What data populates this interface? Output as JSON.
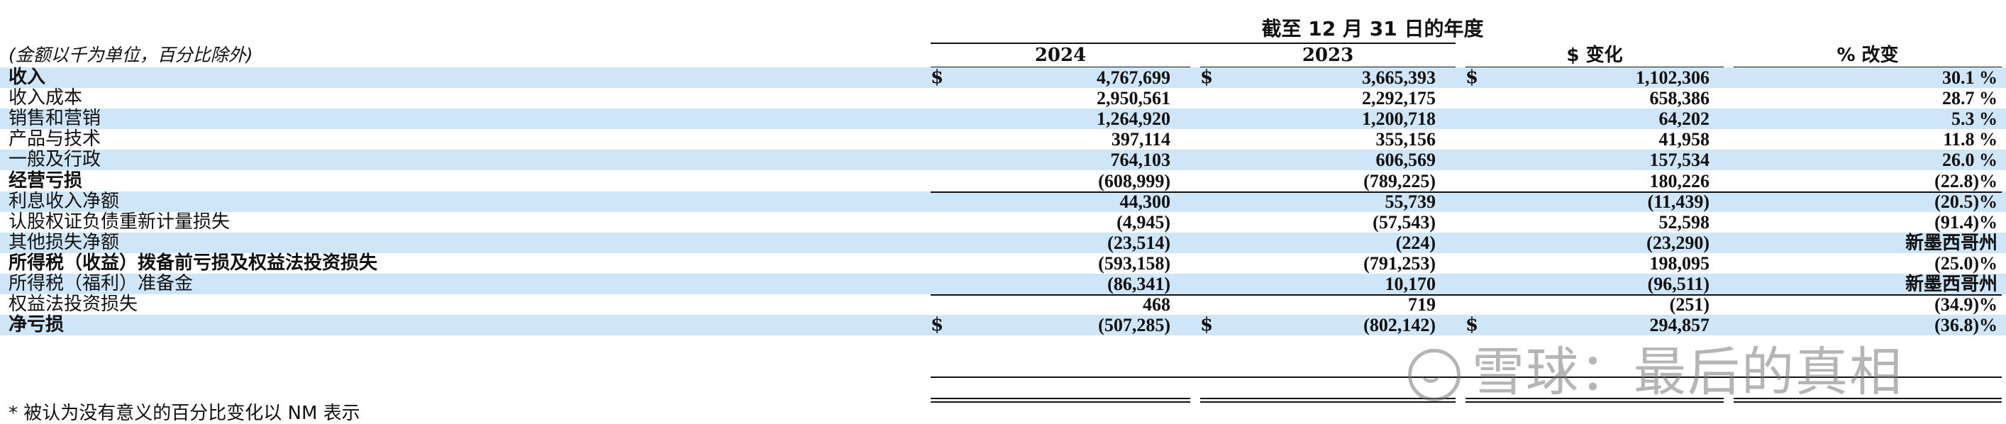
{
  "header": {
    "period_title": "截至 12 月 31 日的年度",
    "note": "(金额以千为单位，百分比除外)",
    "columns": [
      "2024",
      "2023",
      "$ 变化",
      "% 改变"
    ]
  },
  "rows": [
    {
      "label": "收入",
      "bold": true,
      "shaded": true,
      "dollar": true,
      "c1": "4,767,699",
      "c2": "3,665,393",
      "c3": "1,102,306",
      "c4": "30.1 %"
    },
    {
      "label": "收入成本",
      "bold": false,
      "shaded": false,
      "dollar": false,
      "c1": "2,950,561",
      "c2": "2,292,175",
      "c3": "658,386",
      "c4": "28.7 %"
    },
    {
      "label": "销售和营销",
      "bold": false,
      "shaded": true,
      "dollar": false,
      "c1": "1,264,920",
      "c2": "1,200,718",
      "c3": "64,202",
      "c4": "5.3 %"
    },
    {
      "label": "产品与技术",
      "bold": false,
      "shaded": false,
      "dollar": false,
      "c1": "397,114",
      "c2": "355,156",
      "c3": "41,958",
      "c4": "11.8 %"
    },
    {
      "label": "一般及行政",
      "bold": false,
      "shaded": true,
      "dollar": false,
      "c1": "764,103",
      "c2": "606,569",
      "c3": "157,534",
      "c4": "26.0 %"
    },
    {
      "label": "经营亏损",
      "bold": true,
      "shaded": false,
      "dollar": false,
      "c1": "(608,999)",
      "c2": "(789,225)",
      "c3": "180,226",
      "c4": "(22.8)%"
    },
    {
      "label": "利息收入净额",
      "bold": false,
      "shaded": true,
      "dollar": false,
      "c1": "44,300",
      "c2": "55,739",
      "c3": "(11,439)",
      "c4": "(20.5)%"
    },
    {
      "label": "认股权证负债重新计量损失",
      "bold": false,
      "shaded": false,
      "dollar": false,
      "c1": "(4,945)",
      "c2": "(57,543)",
      "c3": "52,598",
      "c4": "(91.4)%"
    },
    {
      "label": "其他损失净额",
      "bold": false,
      "shaded": true,
      "dollar": false,
      "c1": "(23,514)",
      "c2": "(224)",
      "c3": "(23,290)",
      "c4": "新墨西哥州"
    },
    {
      "label": "所得税（收益）拨备前亏损及权益法投资损失",
      "bold": true,
      "shaded": false,
      "dollar": false,
      "c1": "(593,158)",
      "c2": "(791,253)",
      "c3": "198,095",
      "c4": "(25.0)%"
    },
    {
      "label": "所得税（福利）准备金",
      "bold": false,
      "shaded": true,
      "dollar": false,
      "c1": "(86,341)",
      "c2": "10,170",
      "c3": "(96,511)",
      "c4": "新墨西哥州"
    },
    {
      "label": "权益法投资损失",
      "bold": false,
      "shaded": false,
      "dollar": false,
      "c1": "468",
      "c2": "719",
      "c3": "(251)",
      "c4": "(34.9)%"
    },
    {
      "label": "净亏损",
      "bold": true,
      "shaded": true,
      "dollar": true,
      "c1": "(507,285)",
      "c2": "(802,142)",
      "c3": "294,857",
      "c4": "(36.8)%"
    }
  ],
  "currency_symbol": "$",
  "footnote": "* 被认为没有意义的百分比变化以 NM 表示",
  "watermark": "雪球：最后的真相",
  "watermark_icon": "snowball-logo-icon"
}
